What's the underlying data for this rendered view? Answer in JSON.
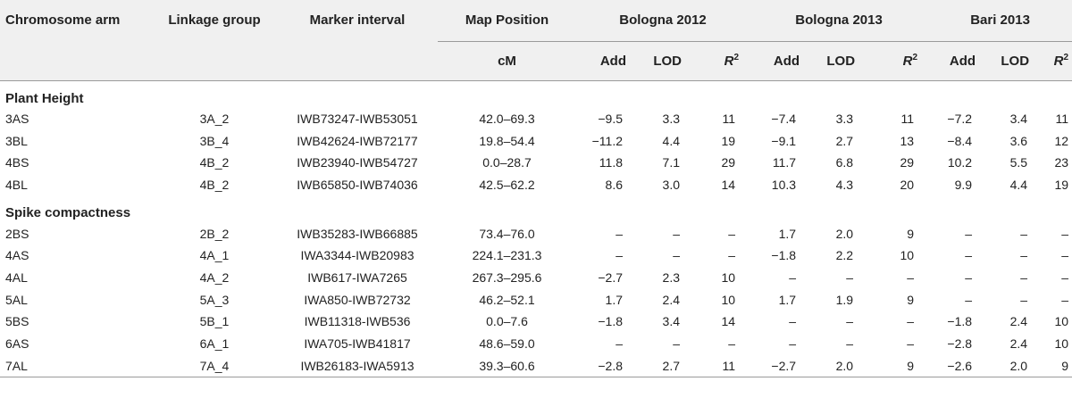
{
  "headers": {
    "chromosome_arm": "Chromosome arm",
    "linkage_group": "Linkage group",
    "marker_interval": "Marker interval",
    "map_position": "Map Position",
    "map_unit": "cM",
    "env1": "Bologna 2012",
    "env2": "Bologna 2013",
    "env3": "Bari 2013",
    "add": "Add",
    "lod": "LOD",
    "r2_base": "R",
    "r2_sup": "2"
  },
  "sections": [
    {
      "title": "Plant Height",
      "rows": [
        {
          "arm": "3AS",
          "lg": "3A_2",
          "interval": "IWB73247-IWB53051",
          "pos": "42.0–69.3",
          "v": [
            "−9.5",
            "3.3",
            "11",
            "−7.4",
            "3.3",
            "11",
            "−7.2",
            "3.4",
            "11"
          ]
        },
        {
          "arm": "3BL",
          "lg": "3B_4",
          "interval": "IWB42624-IWB72177",
          "pos": "19.8–54.4",
          "v": [
            "−11.2",
            "4.4",
            "19",
            "−9.1",
            "2.7",
            "13",
            "−8.4",
            "3.6",
            "12"
          ]
        },
        {
          "arm": "4BS",
          "lg": "4B_2",
          "interval": "IWB23940-IWB54727",
          "pos": "0.0–28.7",
          "v": [
            "11.8",
            "7.1",
            "29",
            "11.7",
            "6.8",
            "29",
            "10.2",
            "5.5",
            "23"
          ]
        },
        {
          "arm": "4BL",
          "lg": "4B_2",
          "interval": "IWB65850-IWB74036",
          "pos": "42.5–62.2",
          "v": [
            "8.6",
            "3.0",
            "14",
            "10.3",
            "4.3",
            "20",
            "9.9",
            "4.4",
            "19"
          ]
        }
      ]
    },
    {
      "title": "Spike compactness",
      "rows": [
        {
          "arm": "2BS",
          "lg": "2B_2",
          "interval": "IWB35283-IWB66885",
          "pos": "73.4–76.0",
          "v": [
            "–",
            "–",
            "–",
            "1.7",
            "2.0",
            "9",
            "–",
            "–",
            "–"
          ]
        },
        {
          "arm": "4AS",
          "lg": "4A_1",
          "interval": "IWA3344-IWB20983",
          "pos": "224.1–231.3",
          "v": [
            "–",
            "–",
            "–",
            "−1.8",
            "2.2",
            "10",
            "–",
            "–",
            "–"
          ]
        },
        {
          "arm": "4AL",
          "lg": "4A_2",
          "interval": "IWB617-IWA7265",
          "pos": "267.3–295.6",
          "v": [
            "−2.7",
            "2.3",
            "10",
            "–",
            "–",
            "–",
            "–",
            "–",
            "–"
          ]
        },
        {
          "arm": "5AL",
          "lg": "5A_3",
          "interval": "IWA850-IWB72732",
          "pos": "46.2–52.1",
          "v": [
            "1.7",
            "2.4",
            "10",
            "1.7",
            "1.9",
            "9",
            "–",
            "–",
            "–"
          ]
        },
        {
          "arm": "5BS",
          "lg": "5B_1",
          "interval": "IWB11318-IWB536",
          "pos": "0.0–7.6",
          "v": [
            "−1.8",
            "3.4",
            "14",
            "–",
            "–",
            "–",
            "−1.8",
            "2.4",
            "10"
          ]
        },
        {
          "arm": "6AS",
          "lg": "6A_1",
          "interval": "IWA705-IWB41817",
          "pos": "48.6–59.0",
          "v": [
            "–",
            "–",
            "–",
            "–",
            "–",
            "–",
            "−2.8",
            "2.4",
            "10"
          ]
        },
        {
          "arm": "7AL",
          "lg": "7A_4",
          "interval": "IWB26183-IWA5913",
          "pos": "39.3–60.6",
          "v": [
            "−2.8",
            "2.7",
            "11",
            "−2.7",
            "2.0",
            "9",
            "−2.6",
            "2.0",
            "9"
          ]
        }
      ]
    }
  ]
}
